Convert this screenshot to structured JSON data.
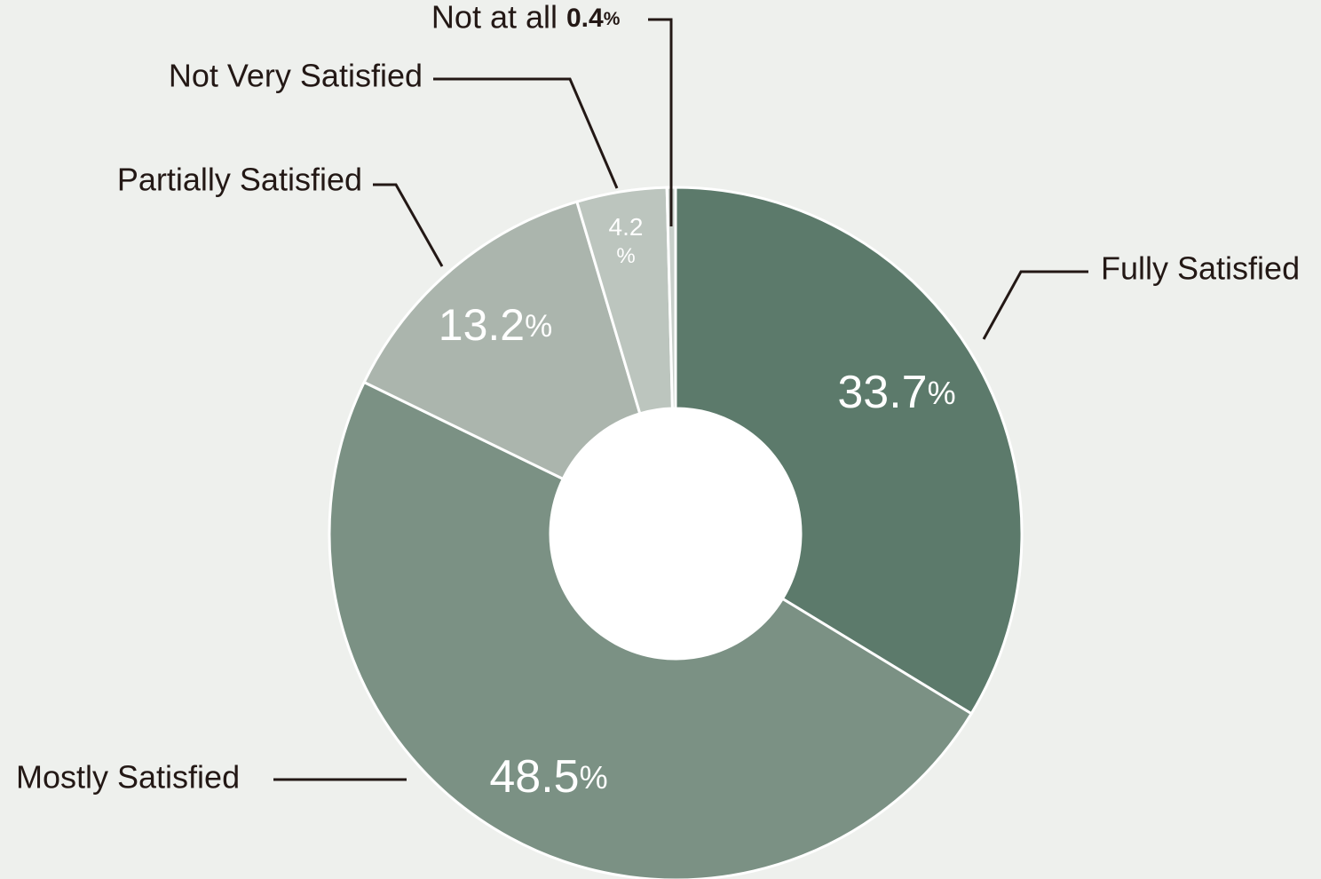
{
  "chart_data": {
    "type": "donut",
    "categories": [
      "Fully Satisfied",
      "Mostly Satisfied",
      "Partially Satisfied",
      "Not Very Satisfied",
      "Not at all"
    ],
    "values": [
      33.7,
      48.5,
      13.2,
      4.2,
      0.4
    ],
    "value_labels": [
      "33.7%",
      "48.5%",
      "13.2%",
      "4.2%",
      "0.4%"
    ],
    "colors": [
      "#5c7a6b",
      "#7b9184",
      "#abb5ad",
      "#bcc5be",
      "#c9d0cb"
    ]
  }
}
